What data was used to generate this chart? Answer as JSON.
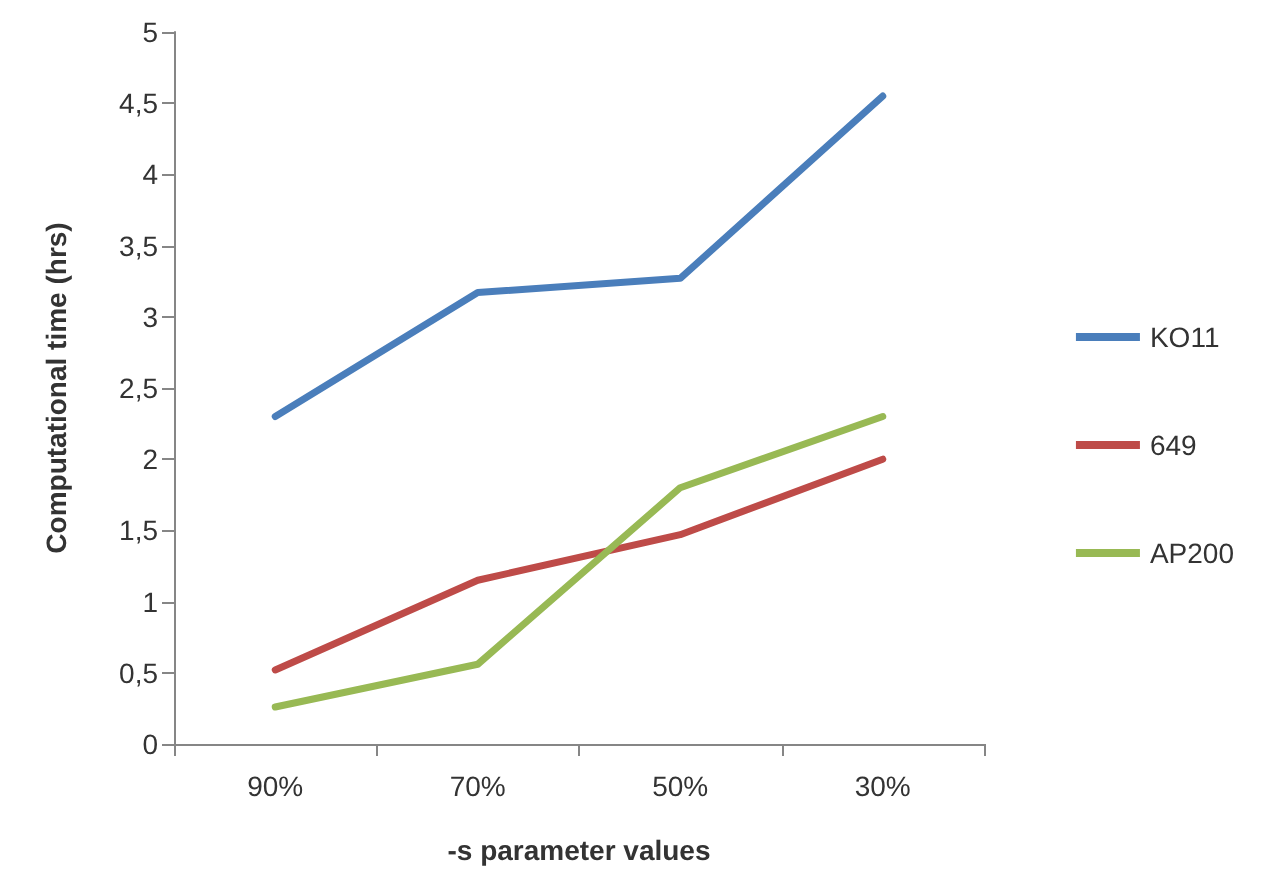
{
  "chart_data": {
    "type": "line",
    "xlabel": "-s parameter values",
    "ylabel": "Computational time (hrs)",
    "categories": [
      "90%",
      "70%",
      "50%",
      "30%"
    ],
    "series": [
      {
        "name": "KO11",
        "color": "#4a7ebb",
        "values": [
          2.3,
          3.17,
          3.27,
          4.55
        ]
      },
      {
        "name": "649",
        "color": "#be4b48",
        "values": [
          0.52,
          1.15,
          1.47,
          2.0
        ]
      },
      {
        "name": "AP200",
        "color": "#98b954",
        "values": [
          0.26,
          0.56,
          1.8,
          2.3
        ]
      }
    ],
    "ylim": [
      0,
      5
    ],
    "yticks": [
      0,
      {
        "value": 0.5,
        "label": "0,5"
      },
      1,
      {
        "value": 1.5,
        "label": "1,5"
      },
      2,
      {
        "value": 2.5,
        "label": "2,5"
      },
      3,
      {
        "value": 3.5,
        "label": "3,5"
      },
      4,
      {
        "value": 4.5,
        "label": "4,5"
      },
      5
    ],
    "grid": false,
    "legend": "right",
    "marker": "none",
    "line_style": "solid"
  }
}
